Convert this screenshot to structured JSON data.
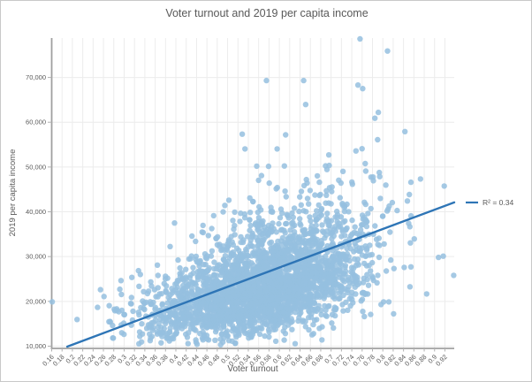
{
  "chart_data": {
    "type": "scatter",
    "title": "Voter turnout and 2019 per capita income",
    "xlabel": "Voter turnout",
    "ylabel": "2019 per capita income",
    "xlim": [
      0.16,
      0.938
    ],
    "ylim": [
      9500,
      78800
    ],
    "grid": true,
    "legend_position": "right-of-plot",
    "x_tick_labels": [
      "0.16",
      "0.18",
      "0.2",
      "0.22",
      "0.24",
      "0.26",
      "0.28",
      "0.3",
      "0.32",
      "0.34",
      "0.36",
      "0.38",
      "0.4",
      "0.42",
      "0.44",
      "0.46",
      "0.48",
      "0.5",
      "0.52",
      "0.54",
      "0.56",
      "0.58",
      "0.6",
      "0.62",
      "0.64",
      "0.66",
      "0.68",
      "0.7",
      "0.72",
      "0.74",
      "0.76",
      "0.78",
      "0.8",
      "0.82",
      "0.84",
      "0.86",
      "0.88",
      "0.9",
      "0.92"
    ],
    "y_ticks": [
      {
        "value": 10000,
        "label": "10,000"
      },
      {
        "value": 20000,
        "label": "20,000"
      },
      {
        "value": 30000,
        "label": "30,000"
      },
      {
        "value": 40000,
        "label": "40,000"
      },
      {
        "value": 50000,
        "label": "50,000"
      },
      {
        "value": 60000,
        "label": "60,000"
      },
      {
        "value": 70000,
        "label": "70,000"
      }
    ],
    "legend": {
      "label": "R² = 0.34"
    },
    "trendline": {
      "x1": 0.19,
      "y1": 9900,
      "x2": 0.938,
      "y2": 42100,
      "r_squared": 0.34,
      "color": "#2e75b6",
      "width": 2.4
    },
    "scatter": {
      "n_points": 3000,
      "seed": 20190,
      "x_dist": {
        "mean": 0.57,
        "sd": 0.105,
        "min": 0.168,
        "max": 0.932
      },
      "y_dist": {
        "median_at_mean_x": 23500,
        "log_slope_per_x": 1.45,
        "log_sd": 0.26,
        "min": 10300,
        "max": 71000
      },
      "point_color": "#95c0df",
      "point_opacity": 0.85,
      "point_radius": 3.2,
      "outlier_points": [
        [
          0.161,
          19900
        ],
        [
          0.756,
          78600
        ],
        [
          0.809,
          75900
        ],
        [
          0.575,
          69300
        ],
        [
          0.647,
          69300
        ],
        [
          0.752,
          68300
        ],
        [
          0.761,
          67500
        ],
        [
          0.937,
          25800
        ]
      ]
    },
    "colors": {
      "point": "#95c0df",
      "trendline": "#2e75b6",
      "grid": "#ececec",
      "axis": "#a0a0a0",
      "tick": "#b0b0b0",
      "text": "#595959",
      "background": "#ffffff",
      "border": "#c9c9c9"
    }
  }
}
